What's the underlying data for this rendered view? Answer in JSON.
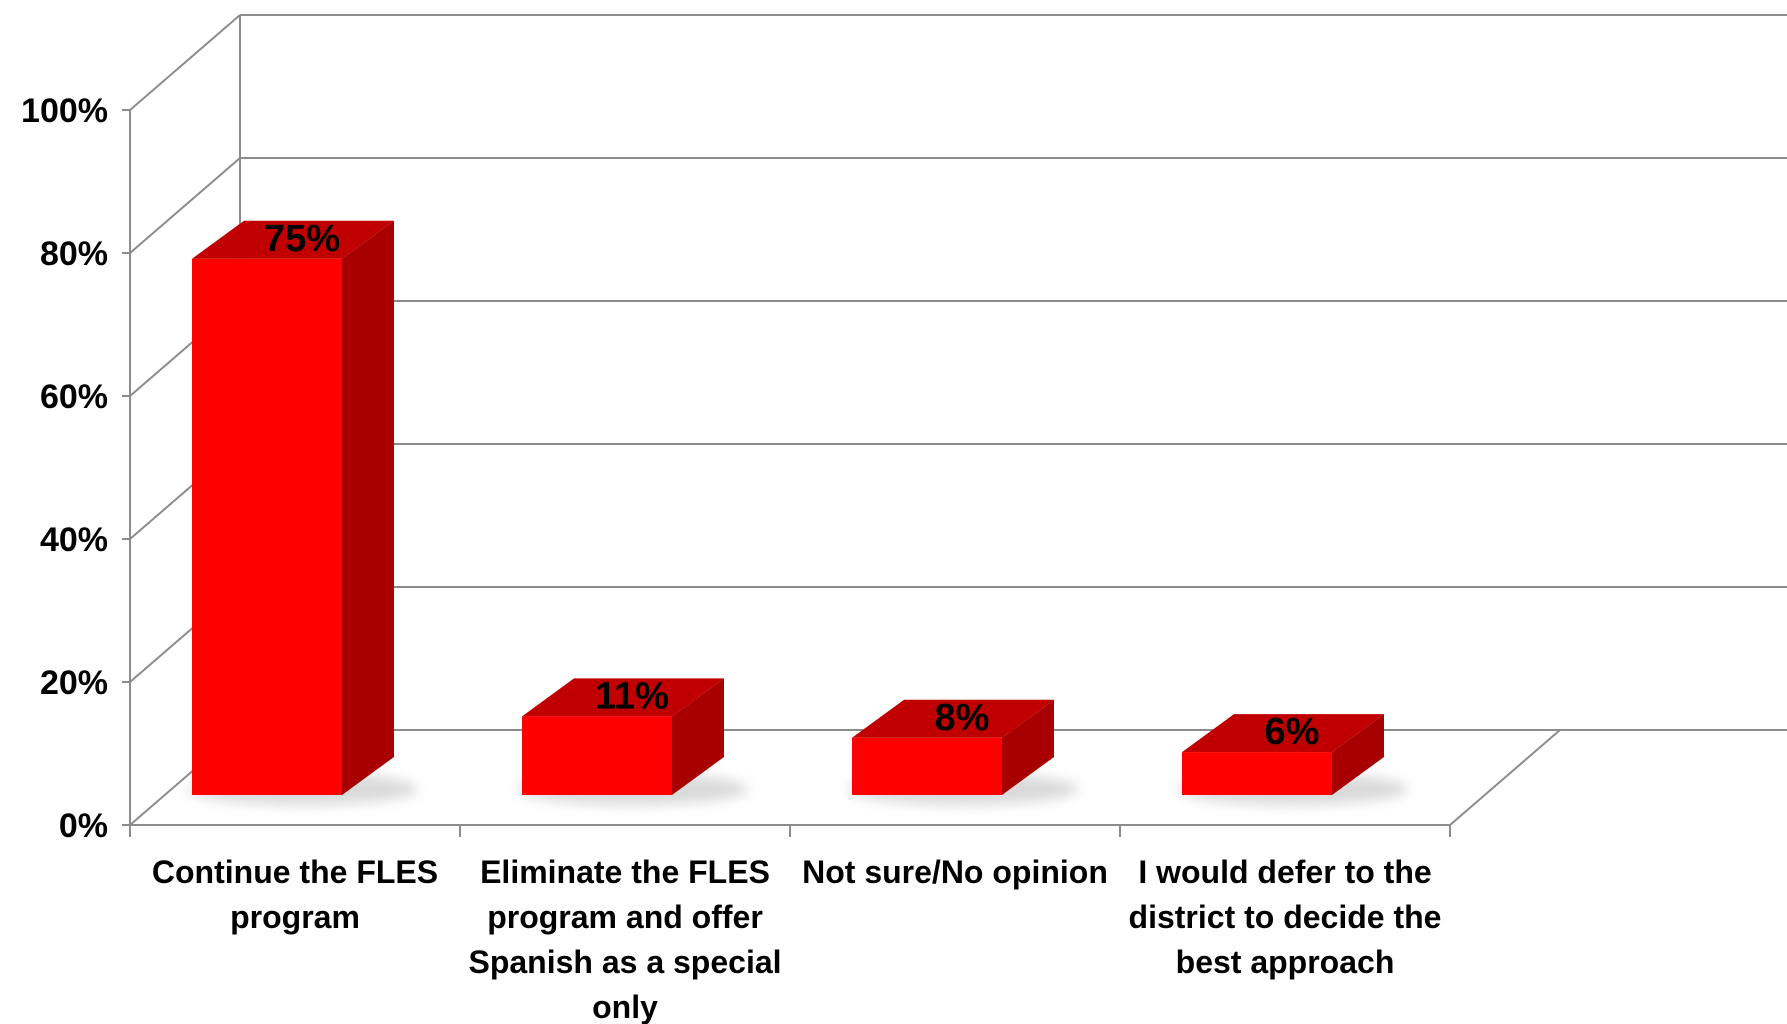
{
  "chart_data": {
    "type": "bar",
    "categories": [
      [
        "Continue the FLES",
        "program"
      ],
      [
        "Eliminate the FLES",
        "program and offer",
        "Spanish as a special",
        "only"
      ],
      [
        "Not sure/No opinion"
      ],
      [
        "I would defer to the",
        "district to decide the",
        "best approach"
      ]
    ],
    "values": [
      75,
      11,
      8,
      6
    ],
    "data_labels": [
      "75%",
      "11%",
      "8%",
      "6%"
    ],
    "y_ticks": [
      0,
      20,
      40,
      60,
      80,
      100
    ],
    "y_tick_labels": [
      "0%",
      "20%",
      "40%",
      "60%",
      "80%",
      "100%"
    ],
    "ylim": [
      0,
      100
    ],
    "title": "",
    "xlabel": "",
    "ylabel": "",
    "grid": true,
    "legend": false,
    "style": "3d-column",
    "colors": {
      "bar_front": "#ff0000",
      "bar_top": "#c00000",
      "bar_side": "#a80000",
      "grid": "#8c8c8c",
      "shadow": "#d0d0d0"
    }
  }
}
